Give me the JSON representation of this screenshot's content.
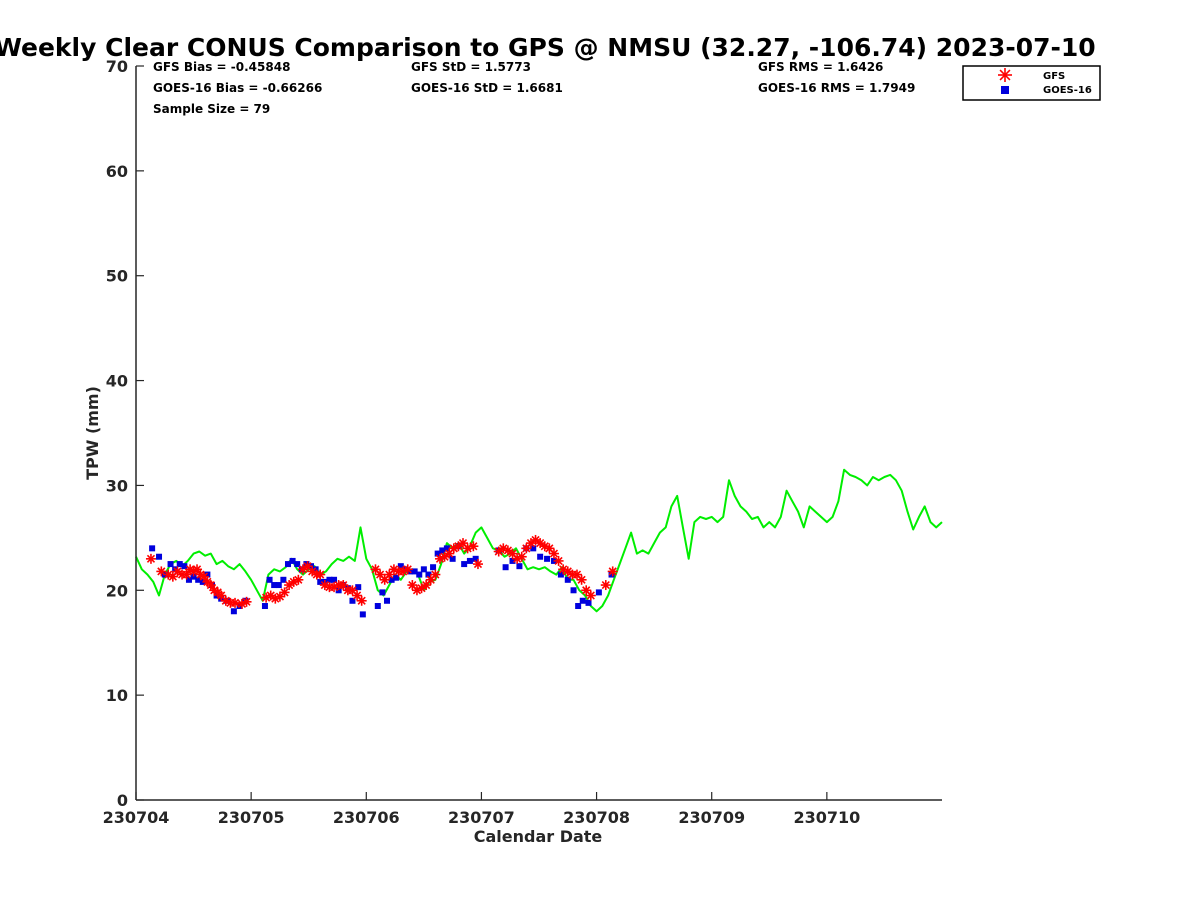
{
  "chart_data": {
    "type": "scatter",
    "title": "Weekly Clear CONUS Comparison to GPS @ NMSU (32.27, -106.74) 2023-07-10",
    "xlabel": "Calendar Date",
    "ylabel": "TPW (mm)",
    "ylim": [
      0,
      70
    ],
    "yticks": [
      0,
      10,
      20,
      30,
      40,
      50,
      60,
      70
    ],
    "xlim": [
      0,
      7
    ],
    "x_unit": "days from 230704 00Z",
    "xticks": [
      0,
      1,
      2,
      3,
      4,
      5,
      6
    ],
    "xtick_labels": [
      "230704",
      "230705",
      "230706",
      "230707",
      "230708",
      "230709",
      "230710"
    ],
    "grid": false,
    "legend_position": "top-right",
    "stats": {
      "gfs_bias": "GFS Bias = -0.45848",
      "goes_bias": "GOES-16 Bias = -0.66266",
      "sample_size": "Sample Size = 79",
      "gfs_std": "GFS StD = 1.5773",
      "goes_std": "GOES-16 StD = 1.6681",
      "gfs_rms": "GFS RMS = 1.6426",
      "goes_rms": "GOES-16 RMS = 1.7949"
    },
    "series": [
      {
        "name": "GPS",
        "style": "line",
        "color": "#00ee00",
        "x": [
          0,
          0.05,
          0.1,
          0.15,
          0.2,
          0.25,
          0.3,
          0.35,
          0.4,
          0.45,
          0.5,
          0.55,
          0.6,
          0.65,
          0.7,
          0.75,
          0.8,
          0.85,
          0.9,
          0.95,
          1.0,
          1.05,
          1.1,
          1.15,
          1.2,
          1.25,
          1.3,
          1.35,
          1.4,
          1.45,
          1.5,
          1.55,
          1.6,
          1.65,
          1.7,
          1.75,
          1.8,
          1.85,
          1.9,
          1.95,
          2.0,
          2.05,
          2.1,
          2.15,
          2.2,
          2.25,
          2.3,
          2.35,
          2.4,
          2.45,
          2.5,
          2.55,
          2.6,
          2.65,
          2.7,
          2.75,
          2.8,
          2.85,
          2.9,
          2.95,
          3.0,
          3.05,
          3.1,
          3.15,
          3.2,
          3.25,
          3.3,
          3.35,
          3.4,
          3.45,
          3.5,
          3.55,
          3.6,
          3.65,
          3.7,
          3.75,
          3.8,
          3.85,
          3.9,
          3.95,
          4.0,
          4.05,
          4.1,
          4.15,
          4.2,
          4.25,
          4.3,
          4.35,
          4.4,
          4.45,
          4.5,
          4.55,
          4.6,
          4.65,
          4.7,
          4.75,
          4.8,
          4.85,
          4.9,
          4.95,
          5.0,
          5.05,
          5.1,
          5.15,
          5.2,
          5.25,
          5.3,
          5.35,
          5.4,
          5.45,
          5.5,
          5.55,
          5.6,
          5.65,
          5.7,
          5.75,
          5.8,
          5.85,
          5.9,
          5.95,
          6.0,
          6.05,
          6.1,
          6.15,
          6.2,
          6.25,
          6.3,
          6.35,
          6.4,
          6.45,
          6.5,
          6.55,
          6.6,
          6.65,
          6.7,
          6.75,
          6.8,
          6.85,
          6.9,
          6.95,
          7.0
        ],
        "y": [
          23.2,
          22.0,
          21.5,
          20.8,
          19.5,
          21.5,
          22.5,
          22.8,
          22.3,
          22.8,
          23.5,
          23.7,
          23.3,
          23.5,
          22.5,
          22.8,
          22.3,
          22.0,
          22.5,
          21.8,
          21.0,
          20.0,
          19.0,
          21.5,
          22.0,
          21.8,
          22.2,
          23.0,
          22.0,
          21.5,
          22.0,
          22.3,
          21.5,
          21.8,
          22.5,
          23.0,
          22.8,
          23.2,
          22.8,
          26.0,
          23.0,
          22.0,
          20.0,
          19.5,
          20.5,
          21.5,
          21.0,
          21.8,
          22.0,
          21.5,
          20.0,
          20.8,
          21.0,
          22.5,
          24.5,
          24.0,
          24.5,
          23.5,
          24.2,
          25.5,
          26.0,
          25.0,
          24.0,
          23.8,
          23.2,
          23.5,
          24.0,
          23.0,
          22.0,
          22.2,
          22.0,
          22.2,
          21.8,
          21.5,
          22.2,
          21.0,
          21.0,
          20.0,
          19.5,
          18.5,
          18.0,
          18.5,
          19.5,
          21.0,
          22.5,
          24.0,
          25.5,
          23.5,
          23.8,
          23.5,
          24.5,
          25.5,
          26.0,
          28.0,
          29.0,
          26.0,
          23.0,
          26.5,
          27.0,
          26.8,
          27.0,
          26.5,
          27.0,
          30.5,
          29.0,
          28.0,
          27.5,
          26.8,
          27.0,
          26.0,
          26.5,
          26.0,
          27.0,
          29.5,
          28.5,
          27.5,
          26.0,
          28.0,
          27.5,
          27.0,
          26.5,
          27.0,
          28.5,
          31.5,
          31.0,
          30.8,
          30.5,
          30.0,
          30.8,
          30.5,
          30.8,
          31.0,
          30.5,
          29.5,
          27.5,
          25.8,
          27.0,
          28.0,
          26.5,
          26.0,
          26.5
        ]
      },
      {
        "name": "GFS",
        "style": "asterisk",
        "color": "#ff0000",
        "x": [
          0.13,
          0.22,
          0.28,
          0.32,
          0.36,
          0.4,
          0.44,
          0.47,
          0.5,
          0.53,
          0.56,
          0.59,
          0.62,
          0.65,
          0.68,
          0.71,
          0.74,
          0.78,
          0.82,
          0.86,
          0.92,
          0.96,
          1.13,
          1.17,
          1.21,
          1.25,
          1.29,
          1.33,
          1.37,
          1.41,
          1.45,
          1.49,
          1.53,
          1.57,
          1.6,
          1.64,
          1.68,
          1.72,
          1.76,
          1.8,
          1.84,
          1.88,
          1.92,
          1.96,
          2.08,
          2.12,
          2.16,
          2.2,
          2.24,
          2.28,
          2.32,
          2.36,
          2.4,
          2.44,
          2.48,
          2.52,
          2.56,
          2.6,
          2.64,
          2.68,
          2.72,
          2.76,
          2.8,
          2.84,
          2.88,
          2.93,
          2.97,
          3.15,
          3.19,
          3.23,
          3.27,
          3.31,
          3.35,
          3.39,
          3.43,
          3.47,
          3.51,
          3.55,
          3.59,
          3.63,
          3.67,
          3.71,
          3.75,
          3.79,
          3.83,
          3.87,
          3.91,
          3.95,
          4.08,
          4.14
        ],
        "y": [
          23.0,
          21.8,
          21.5,
          21.3,
          21.8,
          21.5,
          21.5,
          22.0,
          21.8,
          22.0,
          21.5,
          21.3,
          20.8,
          20.5,
          20.0,
          19.8,
          19.5,
          19.0,
          18.8,
          18.8,
          18.7,
          18.9,
          19.3,
          19.5,
          19.2,
          19.4,
          19.8,
          20.5,
          20.8,
          21.0,
          22.0,
          22.3,
          21.8,
          21.5,
          21.5,
          20.5,
          20.3,
          20.3,
          20.5,
          20.5,
          20.0,
          20.0,
          19.5,
          19.0,
          22.0,
          21.5,
          21.0,
          21.5,
          22.0,
          21.8,
          21.8,
          22.0,
          20.5,
          20.0,
          20.2,
          20.5,
          21.0,
          21.5,
          23.0,
          23.2,
          23.5,
          24.0,
          24.2,
          24.5,
          24.0,
          24.2,
          22.5,
          23.7,
          24.0,
          23.8,
          23.5,
          23.0,
          23.2,
          24.0,
          24.5,
          24.8,
          24.5,
          24.2,
          24.0,
          23.5,
          22.8,
          22.0,
          21.8,
          21.5,
          21.5,
          21.0,
          20.0,
          19.5,
          20.5,
          21.8
        ]
      },
      {
        "name": "GOES-16",
        "style": "square",
        "color": "#0000dd",
        "x": [
          0.14,
          0.2,
          0.25,
          0.3,
          0.34,
          0.38,
          0.42,
          0.46,
          0.5,
          0.54,
          0.58,
          0.62,
          0.66,
          0.7,
          0.74,
          0.79,
          0.85,
          0.9,
          0.95,
          1.12,
          1.16,
          1.2,
          1.24,
          1.28,
          1.32,
          1.36,
          1.4,
          1.44,
          1.48,
          1.52,
          1.56,
          1.6,
          1.64,
          1.68,
          1.72,
          1.76,
          1.8,
          1.84,
          1.88,
          1.93,
          1.97,
          2.1,
          2.14,
          2.18,
          2.22,
          2.26,
          2.3,
          2.34,
          2.38,
          2.42,
          2.46,
          2.5,
          2.54,
          2.58,
          2.62,
          2.66,
          2.7,
          2.75,
          2.8,
          2.85,
          2.9,
          2.95,
          3.15,
          3.21,
          3.27,
          3.33,
          3.39,
          3.45,
          3.51,
          3.57,
          3.63,
          3.69,
          3.75,
          3.8,
          3.84,
          3.88,
          3.93,
          4.02,
          4.13
        ],
        "y": [
          24.0,
          23.2,
          21.5,
          22.5,
          22.0,
          22.5,
          22.3,
          21.0,
          21.3,
          21.0,
          20.8,
          21.5,
          20.5,
          19.5,
          19.2,
          19.0,
          18.0,
          18.5,
          19.0,
          18.5,
          21.0,
          20.5,
          20.5,
          21.0,
          22.5,
          22.8,
          22.5,
          22.0,
          22.5,
          22.3,
          22.0,
          20.8,
          20.8,
          21.0,
          21.0,
          20.0,
          20.5,
          20.2,
          19.0,
          20.3,
          17.7,
          18.5,
          19.8,
          19.0,
          21.0,
          21.2,
          22.3,
          22.0,
          21.8,
          21.8,
          21.5,
          22.0,
          21.5,
          22.2,
          23.5,
          23.8,
          24.0,
          23.0,
          24.2,
          22.5,
          22.8,
          23.0,
          23.8,
          22.2,
          22.8,
          22.3,
          24.0,
          24.0,
          23.2,
          23.0,
          22.8,
          21.5,
          21.0,
          20.0,
          18.5,
          19.0,
          18.8,
          19.8,
          21.5
        ]
      }
    ]
  }
}
